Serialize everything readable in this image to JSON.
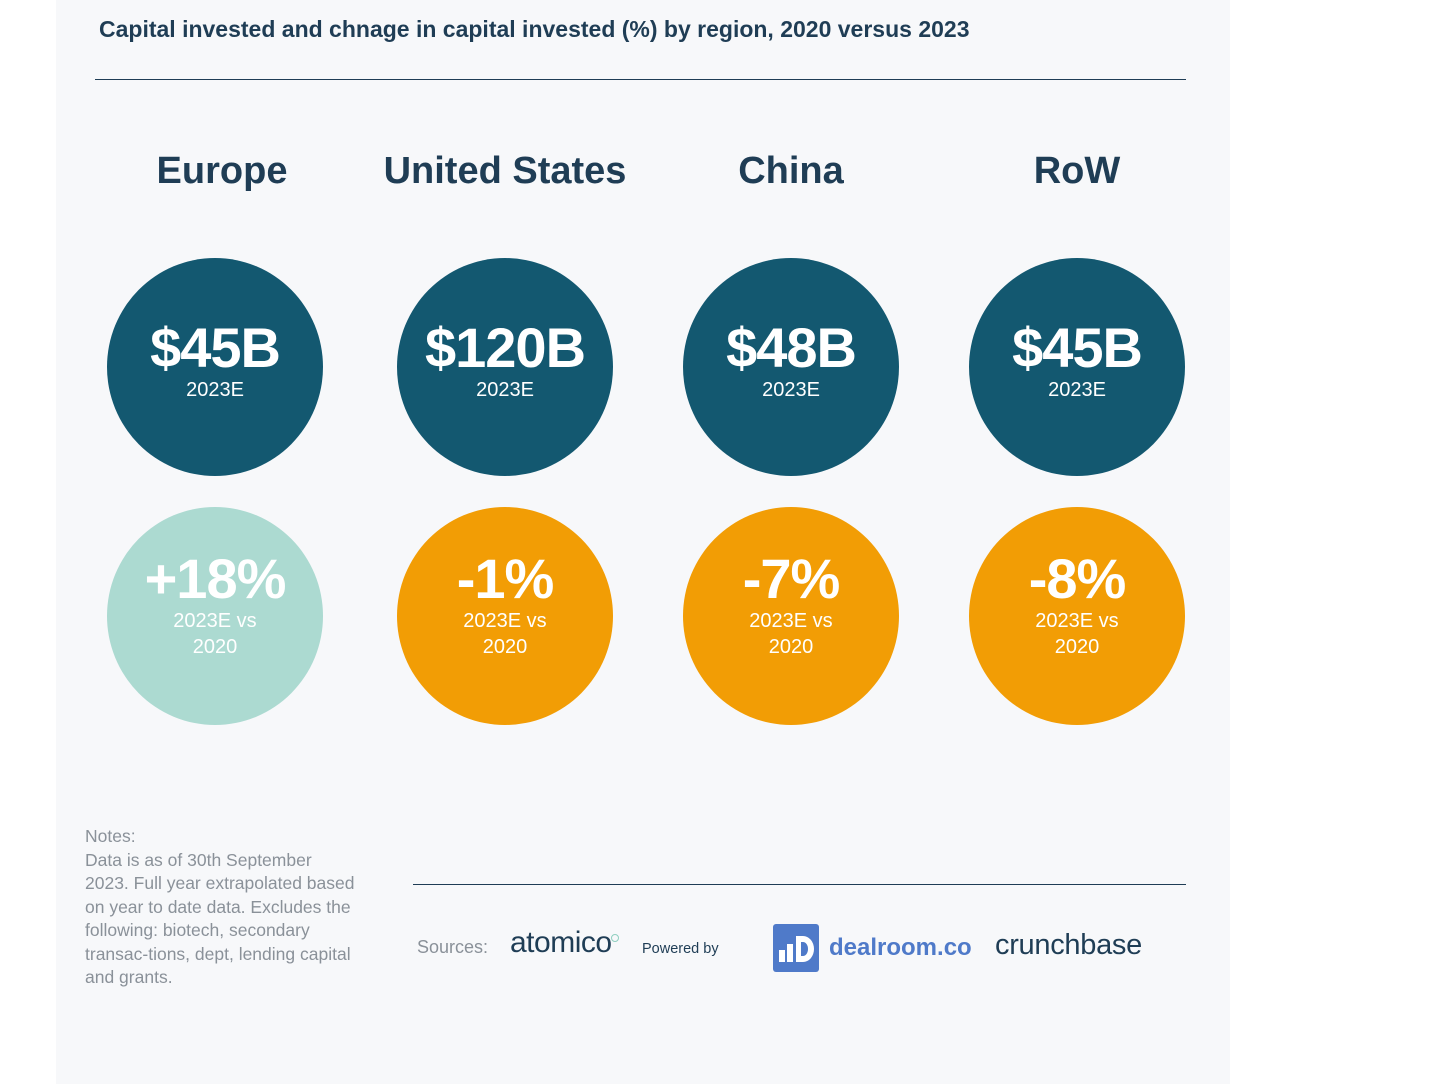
{
  "chart_data": {
    "type": "table",
    "title": "Capital invested and chnage in capital invested (%) by region, 2020 versus 2023",
    "regions": [
      {
        "name": "Europe",
        "capital_invested": "$45B",
        "capital_label": "2023E",
        "change": "+18%",
        "change_label": "2023E vs 2020",
        "change_value": 18,
        "change_color": "#acdad1"
      },
      {
        "name": "United States",
        "capital_invested": "$120B",
        "capital_label": "2023E",
        "change": "-1%",
        "change_label": "2023E vs 2020",
        "change_value": -1,
        "change_color": "#f29d05"
      },
      {
        "name": "China",
        "capital_invested": "$48B",
        "capital_label": "2023E",
        "change": "-7%",
        "change_label": "2023E vs 2020",
        "change_value": -7,
        "change_color": "#f29d05"
      },
      {
        "name": "RoW",
        "capital_invested": "$45B",
        "capital_label": "2023E",
        "change": "-8%",
        "change_label": "2023E vs 2020",
        "change_value": -8,
        "change_color": "#f29d05"
      }
    ],
    "capital_color": "#135870"
  },
  "notes": {
    "heading": "Notes:",
    "text": "Data is as of 30th September 2023. Full year extrapolated based on year to date data. Excludes the following: biotech, secondary transac-tions, dept, lending capital and grants."
  },
  "sources": {
    "label": "Sources:",
    "atomico": "atomico",
    "powered_by": "Powered by",
    "dealroom": "dealroom.co",
    "crunchbase": "crunchbase"
  }
}
